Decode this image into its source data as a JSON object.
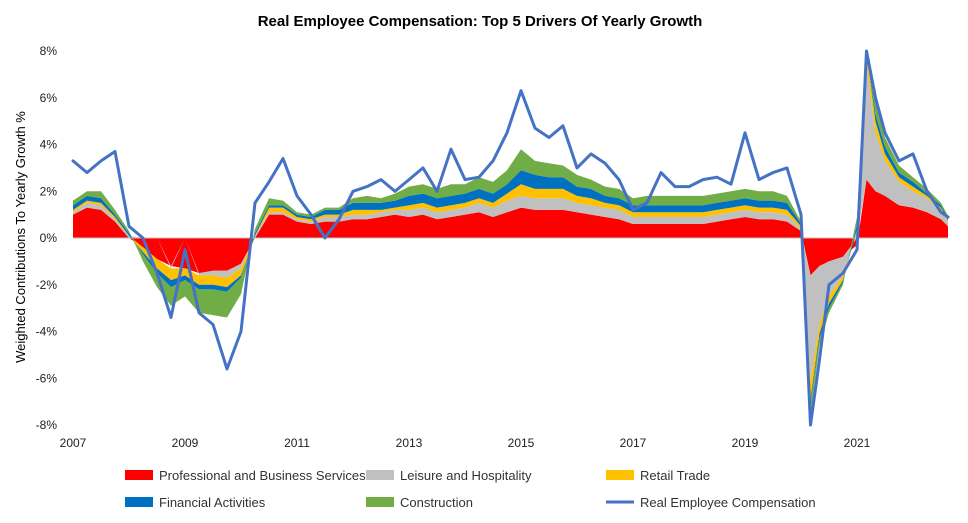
{
  "chart_data": {
    "type": "area",
    "title": "Real Employee Compensation: Top 5 Drivers Of Yearly Growth",
    "ylabel": "Weighted Contributions To Yearly Growth %",
    "xlabel": "",
    "ylim": [
      -8,
      8
    ],
    "xlim": [
      2007.0,
      2022.625
    ],
    "y_ticks": [
      8,
      6,
      4,
      2,
      0,
      -2,
      -4,
      -6,
      -8
    ],
    "y_tick_labels": [
      "8%",
      "6%",
      "4%",
      "2%",
      "0%",
      "-2%",
      "-4%",
      "-6%",
      "-8%"
    ],
    "x_ticks": [
      2007,
      2009,
      2011,
      2013,
      2015,
      2017,
      2019,
      2021
    ],
    "x_tick_labels": [
      "2007",
      "2009",
      "2011",
      "2013",
      "2015",
      "2017",
      "2019",
      "2021"
    ],
    "grid": false,
    "legend_position": "bottom",
    "x": [
      2007.0,
      2007.25,
      2007.5,
      2007.75,
      2008.0,
      2008.25,
      2008.5,
      2008.75,
      2009.0,
      2009.25,
      2009.5,
      2009.75,
      2010.0,
      2010.25,
      2010.5,
      2010.75,
      2011.0,
      2011.25,
      2011.5,
      2011.75,
      2012.0,
      2012.25,
      2012.5,
      2012.75,
      2013.0,
      2013.25,
      2013.5,
      2013.75,
      2014.0,
      2014.25,
      2014.5,
      2014.75,
      2015.0,
      2015.25,
      2015.5,
      2015.75,
      2016.0,
      2016.25,
      2016.5,
      2016.75,
      2017.0,
      2017.25,
      2017.5,
      2017.75,
      2018.0,
      2018.25,
      2018.5,
      2018.75,
      2019.0,
      2019.25,
      2019.5,
      2019.75,
      2020.0,
      2020.17,
      2020.33,
      2020.5,
      2020.75,
      2021.0,
      2021.17,
      2021.33,
      2021.5,
      2021.75,
      2022.0,
      2022.25,
      2022.5,
      2022.625
    ],
    "series": [
      {
        "name": "Professional and Business Services",
        "color": "#ff0000",
        "kind": "area",
        "values": [
          1.0,
          1.3,
          1.2,
          0.7,
          0.0,
          -0.4,
          -0.9,
          -1.2,
          -1.3,
          -1.5,
          -1.4,
          -1.4,
          -1.1,
          0.0,
          1.0,
          1.0,
          0.7,
          0.6,
          0.7,
          0.7,
          0.8,
          0.8,
          0.9,
          1.0,
          0.9,
          1.0,
          0.8,
          0.9,
          1.0,
          1.1,
          0.9,
          1.1,
          1.3,
          1.2,
          1.2,
          1.2,
          1.1,
          1.0,
          0.9,
          0.8,
          0.6,
          0.6,
          0.6,
          0.6,
          0.6,
          0.6,
          0.7,
          0.8,
          0.9,
          0.8,
          0.8,
          0.7,
          0.3,
          -1.6,
          -1.2,
          -1.0,
          -0.8,
          -0.3,
          2.5,
          2.0,
          1.8,
          1.4,
          1.3,
          1.1,
          0.8,
          0.5
        ]
      },
      {
        "name": "Leisure and Hospitality",
        "color": "#c0c0c0",
        "kind": "area",
        "values": [
          0.1,
          0.2,
          0.2,
          0.1,
          0.1,
          0.0,
          0.0,
          -0.1,
          0.0,
          -0.1,
          -0.2,
          -0.3,
          -0.2,
          0.1,
          0.1,
          0.1,
          0.1,
          0.1,
          0.2,
          0.2,
          0.2,
          0.2,
          0.2,
          0.2,
          0.3,
          0.3,
          0.3,
          0.3,
          0.3,
          0.4,
          0.4,
          0.5,
          0.5,
          0.5,
          0.5,
          0.5,
          0.4,
          0.4,
          0.4,
          0.4,
          0.3,
          0.3,
          0.3,
          0.3,
          0.3,
          0.3,
          0.3,
          0.3,
          0.3,
          0.3,
          0.3,
          0.3,
          0.1,
          -4.5,
          -2.5,
          -1.5,
          -0.8,
          0.3,
          5.0,
          2.5,
          1.5,
          1.0,
          0.7,
          0.6,
          0.4,
          0.2
        ]
      },
      {
        "name": "Retail Trade",
        "color": "#ffc000",
        "kind": "area",
        "values": [
          0.1,
          0.1,
          0.1,
          0.1,
          0.0,
          -0.2,
          -0.4,
          -0.5,
          -0.3,
          -0.4,
          -0.4,
          -0.4,
          -0.3,
          0.0,
          0.2,
          0.2,
          0.1,
          0.1,
          0.1,
          0.1,
          0.2,
          0.2,
          0.1,
          0.1,
          0.2,
          0.2,
          0.2,
          0.2,
          0.2,
          0.2,
          0.2,
          0.3,
          0.5,
          0.4,
          0.4,
          0.4,
          0.3,
          0.3,
          0.2,
          0.2,
          0.2,
          0.2,
          0.2,
          0.2,
          0.2,
          0.2,
          0.2,
          0.2,
          0.2,
          0.2,
          0.2,
          0.2,
          0.1,
          -0.8,
          -0.4,
          -0.3,
          -0.2,
          0.1,
          0.8,
          0.5,
          0.3,
          0.2,
          0.2,
          0.1,
          0.1,
          0.05
        ]
      },
      {
        "name": "Financial Activities",
        "color": "#0070c0",
        "kind": "area",
        "values": [
          0.2,
          0.2,
          0.2,
          0.1,
          0.1,
          -0.1,
          -0.2,
          -0.3,
          -0.2,
          -0.2,
          -0.2,
          -0.2,
          -0.1,
          0.1,
          0.1,
          0.1,
          0.1,
          0.1,
          0.2,
          0.2,
          0.3,
          0.3,
          0.3,
          0.3,
          0.4,
          0.4,
          0.4,
          0.4,
          0.4,
          0.4,
          0.4,
          0.4,
          0.6,
          0.6,
          0.5,
          0.5,
          0.4,
          0.4,
          0.3,
          0.3,
          0.3,
          0.3,
          0.3,
          0.3,
          0.3,
          0.3,
          0.3,
          0.3,
          0.3,
          0.3,
          0.3,
          0.3,
          0.1,
          -0.2,
          -0.2,
          -0.2,
          -0.1,
          0.2,
          0.4,
          0.3,
          0.3,
          0.2,
          0.2,
          0.1,
          0.1,
          0.1
        ]
      },
      {
        "name": "Construction",
        "color": "#70ad47",
        "kind": "area",
        "values": [
          0.2,
          0.2,
          0.3,
          0.2,
          0.1,
          -0.3,
          -0.6,
          -0.8,
          -0.7,
          -1.0,
          -1.1,
          -1.1,
          -0.7,
          0.2,
          0.3,
          0.2,
          0.1,
          0.1,
          0.1,
          0.1,
          0.2,
          0.3,
          0.2,
          0.3,
          0.4,
          0.4,
          0.4,
          0.5,
          0.4,
          0.5,
          0.5,
          0.6,
          0.9,
          0.6,
          0.6,
          0.5,
          0.5,
          0.4,
          0.4,
          0.4,
          0.3,
          0.4,
          0.4,
          0.4,
          0.4,
          0.4,
          0.4,
          0.4,
          0.4,
          0.4,
          0.4,
          0.3,
          0.1,
          -0.5,
          -0.3,
          -0.2,
          -0.1,
          0.3,
          0.6,
          0.5,
          0.4,
          0.3,
          0.2,
          0.2,
          0.1,
          0.1
        ]
      },
      {
        "name": "Real Employee Compensation",
        "color": "#4472c4",
        "kind": "line",
        "values": [
          3.3,
          2.8,
          3.3,
          3.7,
          0.5,
          0.0,
          -1.5,
          -3.4,
          -0.5,
          -3.2,
          -3.7,
          -5.6,
          -4.0,
          1.5,
          2.4,
          3.4,
          1.8,
          1.0,
          0.0,
          0.8,
          2.0,
          2.2,
          2.5,
          2.0,
          2.5,
          3.0,
          2.0,
          3.8,
          2.5,
          2.6,
          3.3,
          4.5,
          6.3,
          4.7,
          4.3,
          4.8,
          3.0,
          3.6,
          3.2,
          2.5,
          1.2,
          1.5,
          2.8,
          2.2,
          2.2,
          2.5,
          2.6,
          2.3,
          4.5,
          2.5,
          2.8,
          3.0,
          1.0,
          -8.0,
          -5.2,
          -2.0,
          -1.5,
          -0.5,
          8.0,
          6.0,
          4.5,
          3.3,
          3.6,
          2.0,
          1.1,
          0.9
        ]
      }
    ]
  },
  "legend": [
    {
      "label": "Professional and Business Services",
      "color": "#ff0000",
      "kind": "swatch"
    },
    {
      "label": "Leisure and Hospitality",
      "color": "#c0c0c0",
      "kind": "swatch"
    },
    {
      "label": "Retail Trade",
      "color": "#ffc000",
      "kind": "swatch"
    },
    {
      "label": "Financial Activities",
      "color": "#0070c0",
      "kind": "swatch"
    },
    {
      "label": "Construction",
      "color": "#70ad47",
      "kind": "swatch"
    },
    {
      "label": "Real Employee Compensation",
      "color": "#4472c4",
      "kind": "line"
    }
  ]
}
